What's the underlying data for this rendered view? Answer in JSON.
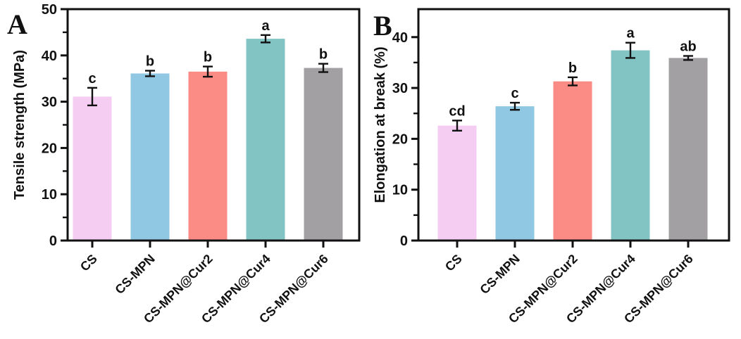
{
  "figure": {
    "panel_a_label": "A",
    "panel_b_label": "B"
  },
  "chart_data": [
    {
      "type": "bar",
      "panel_label": "A",
      "title": "",
      "xlabel": "",
      "ylabel": "Tensile strength (MPa)",
      "categories": [
        "CS",
        "CS-MPN",
        "CS-MPN@Cur2",
        "CS-MPN@Cur4",
        "CS-MPN@Cur6"
      ],
      "values": [
        31.1,
        36.1,
        36.5,
        43.6,
        37.3
      ],
      "errors": [
        1.9,
        0.6,
        1.1,
        0.8,
        0.9
      ],
      "sig_letters": [
        "c",
        "b",
        "b",
        "a",
        "b"
      ],
      "ylim": [
        0,
        50
      ],
      "ytick_step": 10,
      "ytick_max": 50,
      "minor_tick_step": 5,
      "grid": "off",
      "legend": "none",
      "bar_colors": [
        "#F5CDF2",
        "#90C7E2",
        "#FB8B85",
        "#81C4C3",
        "#A3A0A4"
      ],
      "axis_color": "#111111"
    },
    {
      "type": "bar",
      "panel_label": "B",
      "title": "",
      "xlabel": "",
      "ylabel": "Elongation at break (%)",
      "categories": [
        "CS",
        "CS-MPN",
        "CS-MPN@Cur2",
        "CS-MPN@Cur4",
        "CS-MPN@Cur6"
      ],
      "values": [
        22.6,
        26.4,
        31.3,
        37.4,
        35.9
      ],
      "errors": [
        1.0,
        0.7,
        0.8,
        1.5,
        0.4
      ],
      "sig_letters": [
        "cd",
        "c",
        "b",
        "a",
        "ab"
      ],
      "ylim": [
        0,
        45.5
      ],
      "ytick_step": 10,
      "ytick_max": 40,
      "minor_tick_step": 5,
      "grid": "off",
      "legend": "none",
      "bar_colors": [
        "#F5CDF2",
        "#90C7E2",
        "#FB8B85",
        "#81C4C3",
        "#A3A0A4"
      ],
      "axis_color": "#111111"
    }
  ]
}
